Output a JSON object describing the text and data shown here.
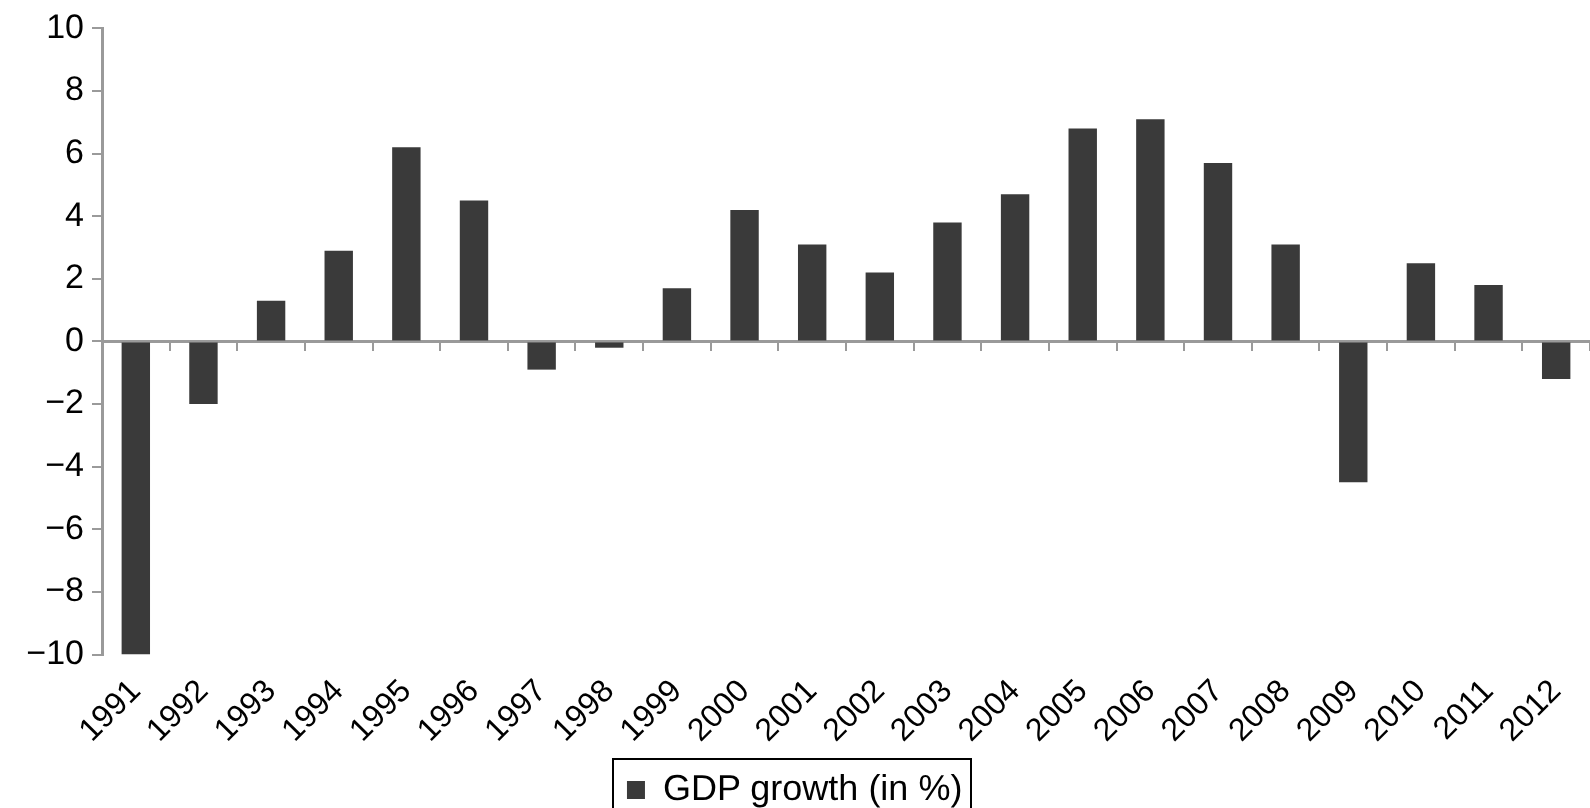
{
  "chart_data": {
    "type": "bar",
    "categories": [
      "1991",
      "1992",
      "1993",
      "1994",
      "1995",
      "1996",
      "1997",
      "1998",
      "1999",
      "2000",
      "2001",
      "2002",
      "2003",
      "2004",
      "2005",
      "2006",
      "2007",
      "2008",
      "2009",
      "2010",
      "2011",
      "2012"
    ],
    "series": [
      {
        "name": "GDP growth (in %)",
        "color": "#3a3a3a",
        "values": [
          -10.0,
          -2.0,
          1.3,
          2.9,
          6.2,
          4.5,
          -0.9,
          -0.2,
          1.7,
          4.2,
          3.1,
          2.2,
          3.8,
          4.7,
          6.8,
          7.1,
          5.7,
          3.1,
          -4.5,
          2.5,
          1.8,
          -1.2
        ]
      }
    ],
    "ylim": [
      -10,
      10
    ],
    "yticks": [
      {
        "value": -10,
        "label": "−10"
      },
      {
        "value": -8,
        "label": "−8"
      },
      {
        "value": -6,
        "label": "−6"
      },
      {
        "value": -4,
        "label": "−4"
      },
      {
        "value": -2,
        "label": "−2"
      },
      0,
      2,
      4,
      6,
      8,
      10
    ],
    "ref_lines": [
      {
        "axis": "y",
        "value": 0,
        "color": "#9a9a9a"
      }
    ],
    "grid": false,
    "legend": "bottom"
  }
}
